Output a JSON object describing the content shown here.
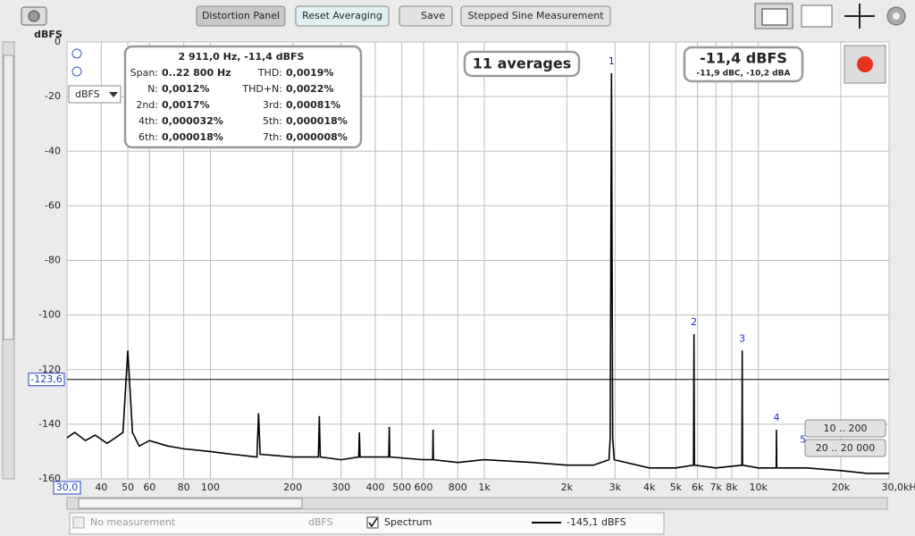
{
  "toolbar": {
    "buttons": [
      "Distortion Panel",
      "Reset Averaging",
      "Save",
      "Stepped Sine Measurement"
    ]
  },
  "y_unit": "dBFS",
  "unit_select": "dBFS",
  "stats": {
    "header": "2 911,0 Hz, -11,4 dBFS",
    "rows": [
      [
        {
          "label": "Span:",
          "value": "0..22 800 Hz"
        },
        {
          "label": "THD:",
          "value": "0,0019%"
        }
      ],
      [
        {
          "label": "N:",
          "value": "0,0012%"
        },
        {
          "label": "THD+N:",
          "value": "0,0022%"
        }
      ],
      [
        {
          "label": "2nd:",
          "value": "0,0017%"
        },
        {
          "label": "3rd:",
          "value": "0,00081%"
        }
      ],
      [
        {
          "label": "4th:",
          "value": "0,000032%"
        },
        {
          "label": "5th:",
          "value": "0,000018%"
        }
      ],
      [
        {
          "label": "6th:",
          "value": "0,000018%"
        },
        {
          "label": "7th:",
          "value": "0,000008%"
        }
      ]
    ]
  },
  "averages": "11 averages",
  "level": {
    "main": "-11,4 dBFS",
    "sub": "-11,9 dBC, -10,2 dBA"
  },
  "range_buttons": [
    "10 .. 200",
    "20 .. 20 000"
  ],
  "legend": {
    "no_measurement": "No measurement",
    "unit": "dBFS",
    "spectrum": "Spectrum",
    "spectrum_value": "-145,1 dBFS"
  },
  "chart_data": {
    "type": "line",
    "x_scale": "log",
    "grid": true,
    "xlim": [
      30,
      30000
    ],
    "ylim": [
      -160,
      0
    ],
    "yticks": [
      0,
      -20,
      -40,
      -60,
      -80,
      -100,
      -120,
      -140,
      -160
    ],
    "xticks": [
      {
        "value": 30,
        "label": "30,0"
      },
      40,
      50,
      60,
      80,
      100,
      200,
      300,
      400,
      500,
      600,
      800,
      {
        "value": 1000,
        "label": "1k"
      },
      {
        "value": 2000,
        "label": "2k"
      },
      {
        "value": 3000,
        "label": "3k"
      },
      {
        "value": 4000,
        "label": "4k"
      },
      {
        "value": 5000,
        "label": "5k"
      },
      {
        "value": 6000,
        "label": "6k"
      },
      {
        "value": 7000,
        "label": "7k"
      },
      {
        "value": 8000,
        "label": "8k"
      },
      {
        "value": 10000,
        "label": "10k"
      },
      {
        "value": 20000,
        "label": "20k"
      },
      {
        "value": 30000,
        "label": "30,0kHz"
      }
    ],
    "cursor": {
      "value": -123.6,
      "label": "-123,6"
    },
    "x": [
      30,
      32,
      35,
      38,
      42,
      45,
      48,
      50,
      52,
      55,
      60,
      70,
      80,
      100,
      120,
      148,
      150,
      152,
      200,
      248,
      250,
      252,
      300,
      348,
      350,
      352,
      448,
      450,
      452,
      600,
      648,
      650,
      652,
      800,
      1000,
      1500,
      2000,
      2500,
      2850,
      2880,
      2911,
      2940,
      2980,
      4000,
      5000,
      5800,
      5822,
      5845,
      7000,
      8710,
      8733,
      8756,
      10000,
      11620,
      11644,
      11670,
      15000,
      20000,
      25000,
      30000
    ],
    "series": [
      {
        "name": "Spectrum",
        "color": "#000000",
        "values": [
          -145,
          -143,
          -146,
          -144,
          -147,
          -145,
          -143,
          -113,
          -143,
          -148,
          -146,
          -148,
          -149,
          -150,
          -151,
          -152,
          -136,
          -151,
          -152,
          -152,
          -137,
          -152,
          -153,
          -152,
          -143,
          -152,
          -152,
          -141,
          -152,
          -153,
          -153,
          -142,
          -153,
          -154,
          -153,
          -154,
          -155,
          -155,
          -153,
          -145,
          -11.4,
          -145,
          -153,
          -156,
          -156,
          -155,
          -107,
          -155,
          -156,
          -155,
          -113,
          -155,
          -156,
          -156,
          -142,
          -156,
          -156,
          -157,
          -158,
          -158
        ]
      }
    ],
    "annotations": [
      {
        "label": "1",
        "x": 2911,
        "y": -11.4
      },
      {
        "label": "2",
        "x": 5822,
        "y": -107
      },
      {
        "label": "3",
        "x": 8733,
        "y": -113
      },
      {
        "label": "4",
        "x": 11644,
        "y": -142
      },
      {
        "label": "5",
        "x": 14555,
        "y": -150
      }
    ]
  }
}
